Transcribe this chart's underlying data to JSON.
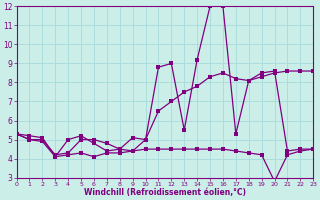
{
  "xlabel": "Windchill (Refroidissement éolien,°C)",
  "bg_color": "#cceee8",
  "line_color": "#800080",
  "grid_color": "#aadddd",
  "xmin": 0,
  "xmax": 23,
  "ymin": 3,
  "ymax": 12,
  "line1_x": [
    0,
    1,
    2,
    3,
    4,
    5,
    6,
    7,
    8,
    9,
    10,
    11,
    12,
    13,
    14,
    15,
    16,
    17,
    18,
    19,
    20,
    21,
    22,
    23
  ],
  "line1_y": [
    5.3,
    5.2,
    5.1,
    4.1,
    5.0,
    5.2,
    4.8,
    4.4,
    4.5,
    5.1,
    5.0,
    8.8,
    9.0,
    5.5,
    9.2,
    12.0,
    12.0,
    5.3,
    8.1,
    8.5,
    8.6,
    4.4,
    4.5,
    4.5
  ],
  "line2_x": [
    0,
    1,
    2,
    3,
    4,
    5,
    6,
    7,
    8,
    9,
    10,
    11,
    12,
    13,
    14,
    15,
    16,
    17,
    18,
    19,
    20,
    21,
    22,
    23
  ],
  "line2_y": [
    5.3,
    5.0,
    5.0,
    4.2,
    4.3,
    5.0,
    5.0,
    4.8,
    4.5,
    4.4,
    5.0,
    6.5,
    7.0,
    7.5,
    7.8,
    8.3,
    8.5,
    8.2,
    8.1,
    8.3,
    8.5,
    8.6,
    8.6,
    8.6
  ],
  "line3_x": [
    0,
    1,
    2,
    3,
    4,
    5,
    6,
    7,
    8,
    9,
    10,
    11,
    12,
    13,
    14,
    15,
    16,
    17,
    18,
    19,
    20,
    21,
    22,
    23
  ],
  "line3_y": [
    5.3,
    5.0,
    4.9,
    4.1,
    4.2,
    4.3,
    4.1,
    4.3,
    4.3,
    4.4,
    4.5,
    4.5,
    4.5,
    4.5,
    4.5,
    4.5,
    4.5,
    4.4,
    4.3,
    4.2,
    2.8,
    4.2,
    4.4,
    4.5
  ]
}
